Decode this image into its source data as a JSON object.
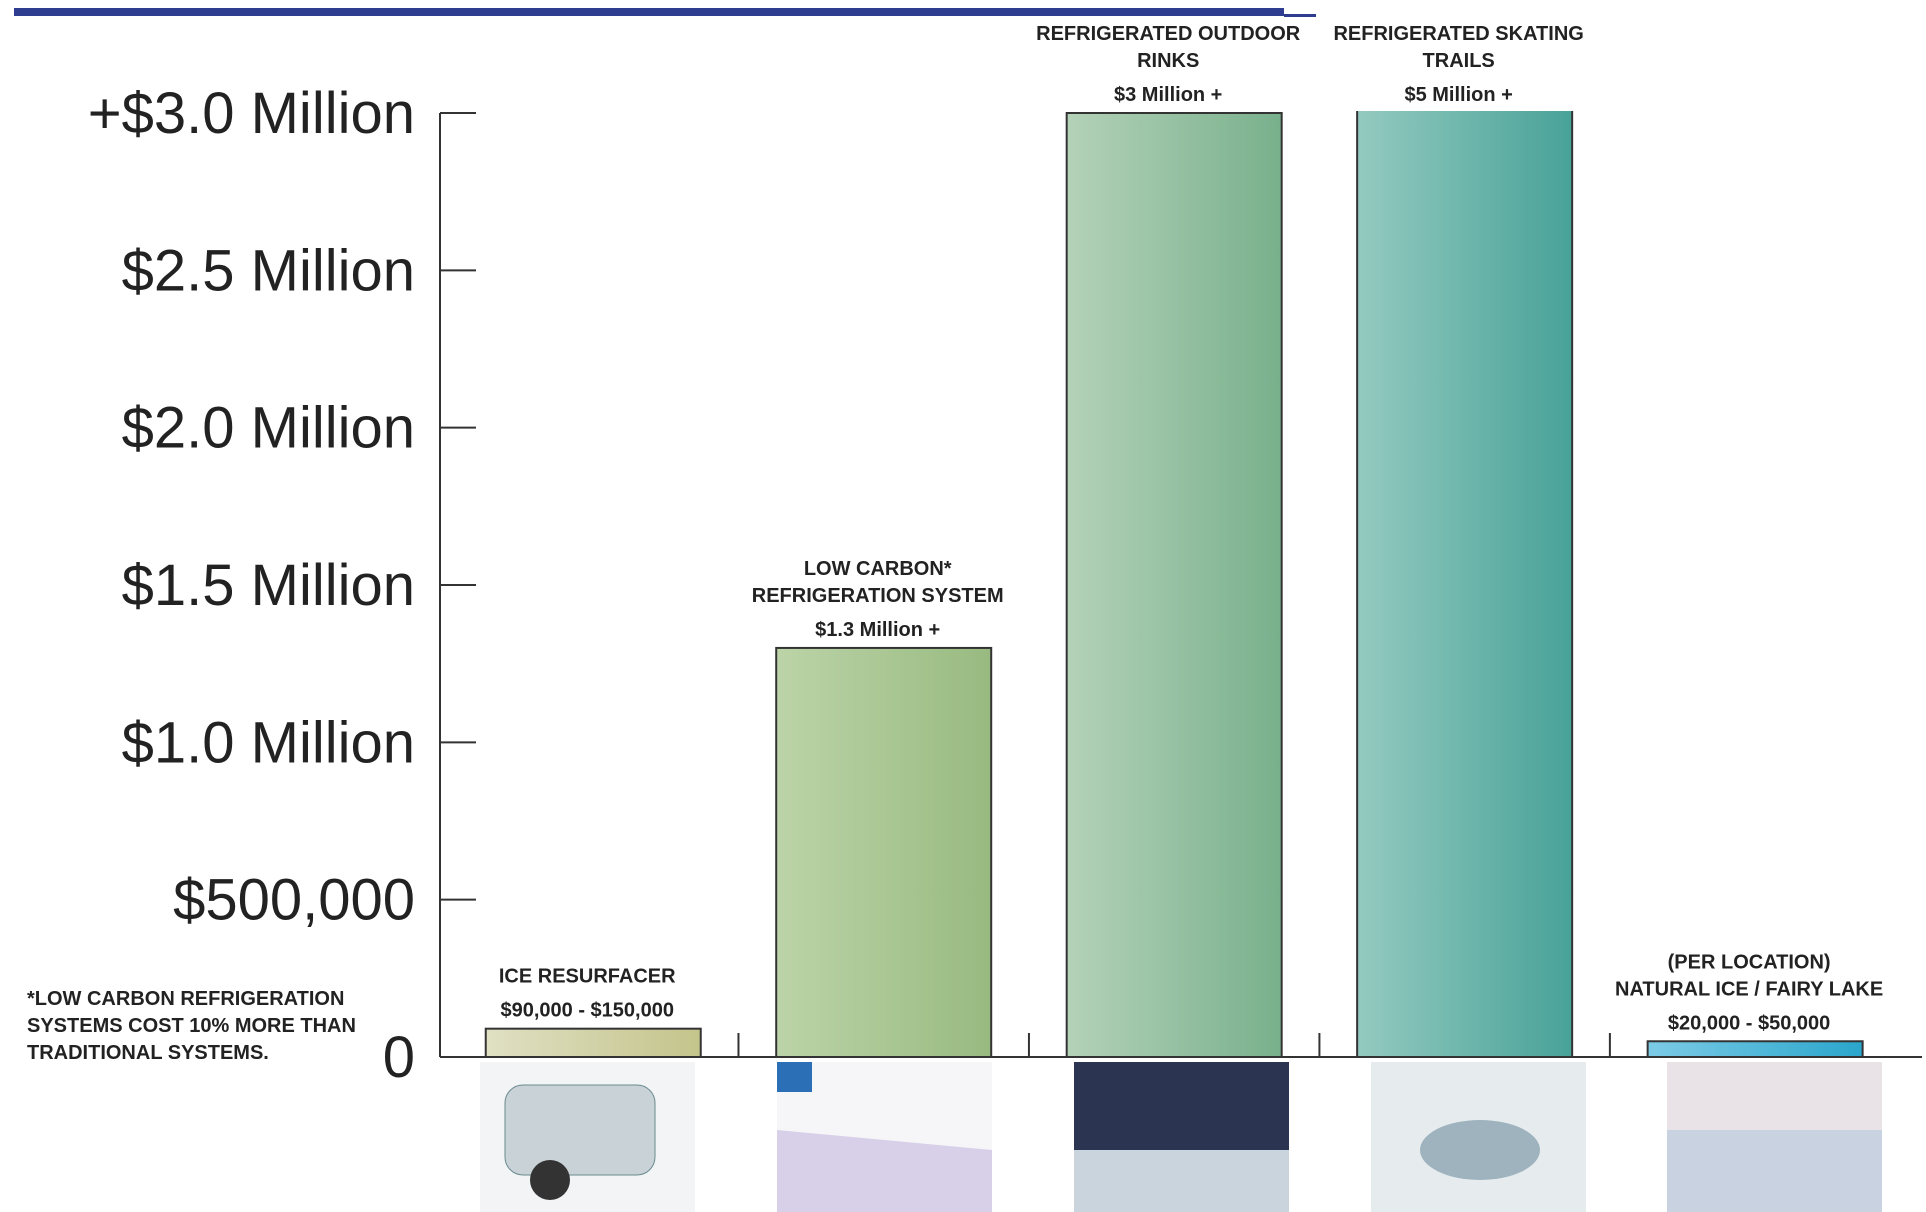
{
  "chart_data": {
    "type": "bar",
    "categories": [
      [
        "ICE RESURFACER"
      ],
      [
        "LOW CARBON*",
        "REFRIGERATION SYSTEM"
      ],
      [
        "REFRIGERATED OUTDOOR",
        "RINKS"
      ],
      [
        "REFRIGERATED SKATING",
        "TRAILS"
      ],
      [
        "(PER LOCATION)",
        "NATURAL ICE / FAIRY LAKE"
      ]
    ],
    "values": [
      90000,
      1300000,
      3000000,
      5000000,
      50000
    ],
    "value_labels": [
      "$90,000 - $150,000",
      "$1.3 Million +",
      "$3 Million +",
      "$5 Million +",
      "$20,000 - $50,000"
    ],
    "colors": [
      [
        "#e0e0c4",
        "#c4c48c"
      ],
      [
        "#bcd4a8",
        "#98ba80"
      ],
      [
        "#b4d2b8",
        "#78b08c"
      ],
      [
        "#94cac0",
        "#48a298"
      ],
      [
        "#7ccbe6",
        "#2aa6cc"
      ]
    ],
    "ylim": [
      0,
      3000000
    ],
    "yticks": [
      {
        "value": 0,
        "label": "0"
      },
      {
        "value": 500000,
        "label": "$500,000"
      },
      {
        "value": 1000000,
        "label": "$1.0 Million"
      },
      {
        "value": 1500000,
        "label": "$1.5 Million"
      },
      {
        "value": 2000000,
        "label": "$2.0 Million"
      },
      {
        "value": 2500000,
        "label": "$2.5 Million"
      },
      {
        "value": 3000000,
        "label": "+$3.0 Million"
      }
    ],
    "annotation": [
      "*LOW CARBON REFRIGERATION",
      "SYSTEMS COST 10% MORE THAN",
      "TRADITIONAL SYSTEMS."
    ]
  }
}
